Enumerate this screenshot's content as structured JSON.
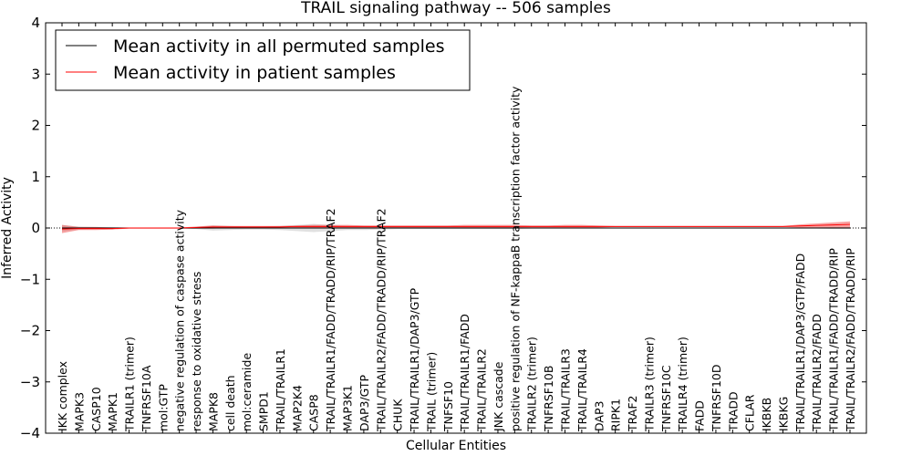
{
  "chart_data": {
    "type": "line",
    "title": "TRAIL signaling pathway -- 506 samples",
    "xlabel": "Cellular Entities",
    "ylabel": "Inferred Activity",
    "ylim": [
      -4,
      4
    ],
    "yticks": [
      -4,
      -3,
      -2,
      -1,
      0,
      1,
      2,
      3,
      4
    ],
    "ytick_labels": [
      "−4",
      "−3",
      "−2",
      "−1",
      "0",
      "1",
      "2",
      "3",
      "4"
    ],
    "grid": false,
    "legend_position": "top-left",
    "baseline": 0,
    "categories": [
      "IKK complex",
      "MAPK3",
      "CASP10",
      "MAPK1",
      "TRAILR1 (trimer)",
      "TNFRSF10A",
      "mol:GTP",
      "negative regulation of caspase activity",
      "response to oxidative stress",
      "MAPK8",
      "cell death",
      "mol:ceramide",
      "SMPD1",
      "TRAIL/TRAILR1",
      "MAP2K4",
      "CASP8",
      "TRAIL/TRAILR1/FADD/TRADD/RIP/TRAF2",
      "MAP3K1",
      "DAP3/GTP",
      "TRAIL/TRAILR2/FADD/TRADD/RIP/TRAF2",
      "CHUK",
      "TRAIL/TRAILR1/DAP3/GTP",
      "TRAIL (trimer)",
      "TNFSF10",
      "TRAIL/TRAILR1/FADD",
      "TRAIL/TRAILR2",
      "JNK cascade",
      "positive regulation of NF-kappaB transcription factor activity",
      "TRAILR2 (trimer)",
      "TNFRSF10B",
      "TRAIL/TRAILR3",
      "TRAIL/TRAILR4",
      "DAP3",
      "RIPK1",
      "TRAF2",
      "TRAILR3 (trimer)",
      "TNFRSF10C",
      "TRAILR4 (trimer)",
      "FADD",
      "TNFRSF10D",
      "TRADD",
      "CFLAR",
      "IKBKB",
      "IKBKG",
      "TRAIL/TRAILR1/DAP3/GTP/FADD",
      "TRAIL/TRAILR2/FADD",
      "TRAIL/TRAILR1/FADD/TRADD/RIP",
      "TRAIL/TRAILR2/FADD/TRADD/RIP"
    ],
    "series": [
      {
        "name": "Mean activity in all permuted samples",
        "color": "#000000",
        "values": [
          0,
          0,
          0,
          0,
          0,
          0,
          0,
          0,
          0,
          0,
          0,
          0,
          0,
          0,
          0,
          0,
          0,
          0,
          0,
          0,
          0,
          0,
          0,
          0,
          0,
          0,
          0,
          0,
          0,
          0,
          0,
          0,
          0,
          0,
          0,
          0,
          0,
          0,
          0,
          0,
          0,
          0,
          0,
          0,
          0,
          0,
          0,
          0
        ],
        "band": [
          0.06,
          0.03,
          0.02,
          0.02,
          0.01,
          0.01,
          0.01,
          0.01,
          0.02,
          0.05,
          0.04,
          0.03,
          0.03,
          0.04,
          0.06,
          0.08,
          0.06,
          0.04,
          0.04,
          0.03,
          0.02,
          0.02,
          0.02,
          0.02,
          0.02,
          0.02,
          0.02,
          0.02,
          0.01,
          0.01,
          0.01,
          0.01,
          0.01,
          0.01,
          0.01,
          0.01,
          0.01,
          0.01,
          0.01,
          0.01,
          0.01,
          0.01,
          0.01,
          0.01,
          0.01,
          0.01,
          0.02,
          0.02
        ],
        "band_color": "#c8c8c8"
      },
      {
        "name": "Mean activity in patient samples",
        "color": "#ff0000",
        "values": [
          -0.02,
          -0.01,
          -0.01,
          -0.01,
          0.0,
          0.0,
          0.0,
          0.0,
          0.01,
          0.02,
          0.02,
          0.02,
          0.02,
          0.02,
          0.03,
          0.03,
          0.03,
          0.03,
          0.03,
          0.03,
          0.03,
          0.03,
          0.03,
          0.03,
          0.03,
          0.03,
          0.03,
          0.03,
          0.03,
          0.03,
          0.03,
          0.03,
          0.03,
          0.03,
          0.03,
          0.03,
          0.03,
          0.03,
          0.03,
          0.03,
          0.03,
          0.03,
          0.03,
          0.03,
          0.04,
          0.05,
          0.06,
          0.07
        ],
        "band": [
          0.08,
          0.03,
          0.03,
          0.02,
          0.01,
          0.01,
          0.01,
          0.01,
          0.02,
          0.03,
          0.02,
          0.02,
          0.02,
          0.02,
          0.02,
          0.03,
          0.03,
          0.03,
          0.02,
          0.02,
          0.02,
          0.02,
          0.02,
          0.02,
          0.03,
          0.03,
          0.03,
          0.03,
          0.02,
          0.02,
          0.03,
          0.03,
          0.02,
          0.01,
          0.01,
          0.01,
          0.01,
          0.01,
          0.01,
          0.01,
          0.01,
          0.01,
          0.01,
          0.01,
          0.03,
          0.04,
          0.05,
          0.06
        ],
        "band_color": "#ee3030"
      }
    ]
  }
}
